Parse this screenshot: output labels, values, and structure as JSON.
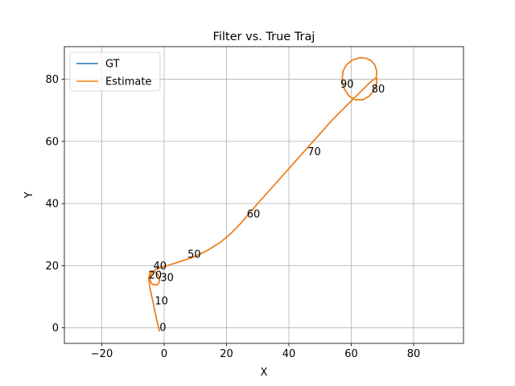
{
  "chart_data": {
    "type": "line",
    "title": "Filter vs. True Traj",
    "xlabel": "X",
    "ylabel": "Y",
    "xlim": [
      -32,
      96
    ],
    "ylim": [
      -5,
      90.5
    ],
    "xticks": [
      -20,
      0,
      20,
      40,
      60,
      80
    ],
    "yticks": [
      0,
      20,
      40,
      60,
      80
    ],
    "grid": true,
    "legend_placement": "top-left",
    "series": [
      {
        "name": "GT",
        "color": "#1f77b4",
        "x": [
          -1.5,
          -2.5,
          -3.5,
          -4.5,
          -5,
          -4.5,
          -3.5,
          -2.5,
          -1.6,
          -1.5,
          -2.2,
          -3.8,
          -4.7,
          -4.2,
          -2.5,
          1,
          5,
          10,
          14,
          18,
          21,
          24,
          27,
          30,
          34,
          38,
          42,
          46,
          50,
          54,
          58,
          62,
          66,
          68,
          68.2,
          67.6,
          66.4,
          64.7,
          62.6,
          60.4,
          58.5,
          57.3,
          57.1,
          57.8,
          59.3,
          61.4,
          63.7,
          65.8,
          67.3,
          68.1,
          68.2
        ],
        "y": [
          -1,
          3,
          8,
          12.5,
          16,
          17.8,
          18.2,
          17.8,
          16.5,
          15,
          13.8,
          14,
          15.5,
          17.5,
          19,
          20,
          21.3,
          23,
          25,
          27.5,
          30,
          33,
          36.5,
          40,
          44.5,
          49,
          53.5,
          58,
          62.5,
          67,
          71,
          75,
          79,
          80.5,
          82.5,
          84.5,
          86,
          86.8,
          86.9,
          86.2,
          84.7,
          82.5,
          79.5,
          76.8,
          74.6,
          73.4,
          73.4,
          74.6,
          76.5,
          78.5,
          80.5
        ]
      },
      {
        "name": "Estimate",
        "color": "#ff7f0e",
        "x": [
          -1.5,
          -2.5,
          -3.5,
          -4.5,
          -5,
          -4.5,
          -3.5,
          -2.5,
          -1.6,
          -1.5,
          -2.2,
          -3.8,
          -4.7,
          -4.2,
          -2.5,
          1,
          5,
          10,
          14,
          18,
          21,
          24,
          27,
          30,
          34,
          38,
          42,
          46,
          50,
          54,
          58,
          62,
          66,
          68,
          68.2,
          67.6,
          66.4,
          64.7,
          62.6,
          60.4,
          58.5,
          57.3,
          57.1,
          57.8,
          59.3,
          61.4,
          63.7,
          65.8,
          67.3,
          68.1,
          68.2
        ],
        "y": [
          -1,
          3,
          8,
          12.5,
          16,
          17.8,
          18.2,
          17.8,
          16.5,
          15,
          13.8,
          14,
          15.5,
          17.5,
          19,
          20,
          21.3,
          23,
          25,
          27.5,
          30,
          33,
          36.5,
          40,
          44.5,
          49,
          53.5,
          58,
          62.5,
          67,
          71,
          75,
          79,
          80.5,
          82.5,
          84.5,
          86,
          86.8,
          86.9,
          86.2,
          84.7,
          82.5,
          79.5,
          76.8,
          74.6,
          73.4,
          73.4,
          74.6,
          76.5,
          78.5,
          80.5
        ]
      }
    ],
    "annotations": [
      {
        "text": "0",
        "x": -1.5,
        "y": -1
      },
      {
        "text": "10",
        "x": -3,
        "y": 7.5
      },
      {
        "text": "20",
        "x": -5,
        "y": 15.8
      },
      {
        "text": "30",
        "x": -1.2,
        "y": 15
      },
      {
        "text": "40",
        "x": -3.5,
        "y": 18.8
      },
      {
        "text": "50",
        "x": 7.5,
        "y": 22.5
      },
      {
        "text": "60",
        "x": 26.5,
        "y": 35.5
      },
      {
        "text": "70",
        "x": 46,
        "y": 55.5
      },
      {
        "text": "80",
        "x": 66.5,
        "y": 75.8
      },
      {
        "text": "90",
        "x": 56.5,
        "y": 77.3
      }
    ]
  }
}
